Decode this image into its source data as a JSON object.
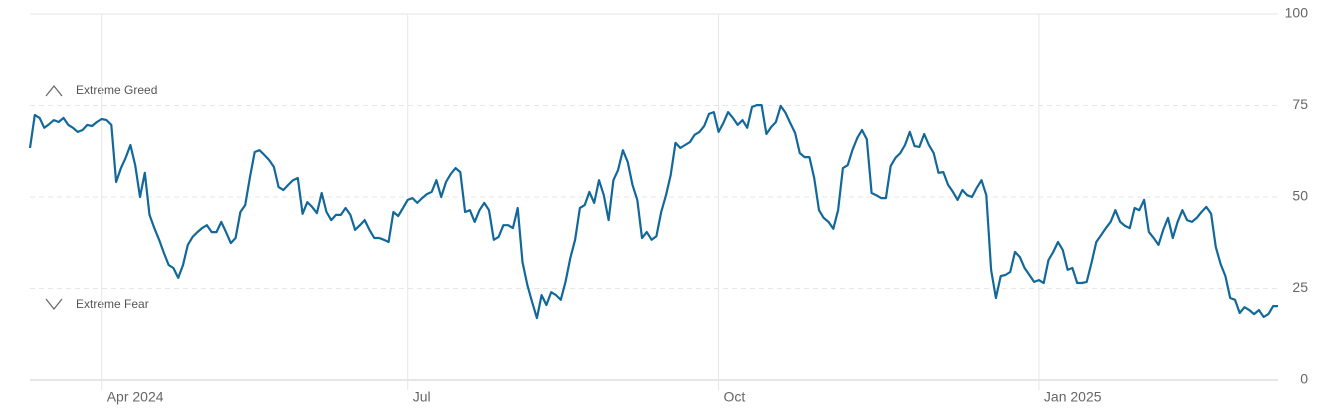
{
  "chart_data": {
    "type": "line",
    "annotations": [
      "Extreme Greed",
      "Extreme Fear"
    ],
    "xlim": [
      0,
      261
    ],
    "xticks": [
      {
        "value": 15,
        "label": "Apr 2024"
      },
      {
        "value": 79,
        "label": "Jul"
      },
      {
        "value": 144,
        "label": "Oct"
      },
      {
        "value": 211,
        "label": "Jan 2025"
      }
    ],
    "ylim": [
      0,
      100
    ],
    "yticks": [
      0,
      25,
      50,
      75,
      100
    ],
    "grid": true,
    "series": [
      {
        "color": "#12689a",
        "values": [
          63.4,
          72.4,
          71.6,
          68.9,
          69.9,
          71,
          70.5,
          71.6,
          69.7,
          68.9,
          67.8,
          68.3,
          69.7,
          69.4,
          70.5,
          71.3,
          71,
          69.7,
          54.1,
          57.9,
          60.7,
          64.2,
          58.7,
          50,
          56.6,
          45.1,
          41.5,
          38.3,
          34.7,
          31.4,
          30.6,
          27.9,
          31.4,
          36.9,
          39.1,
          40.4,
          41.5,
          42.3,
          40.4,
          40.4,
          43.2,
          40.4,
          37.4,
          38.8,
          45.9,
          47.8,
          55.5,
          62.3,
          62.8,
          61.5,
          60.1,
          58.2,
          52.7,
          51.9,
          53.3,
          54.6,
          55.2,
          45.4,
          48.6,
          47.3,
          45.6,
          51.1,
          45.9,
          43.7,
          45.1,
          45.1,
          47,
          45.1,
          41,
          42.3,
          43.7,
          41,
          38.8,
          38.8,
          38.3,
          37.7,
          45.9,
          44.8,
          47,
          49.2,
          49.7,
          48.4,
          49.7,
          50.8,
          51.4,
          54.6,
          50,
          54.1,
          56.3,
          57.9,
          56.8,
          45.9,
          46.4,
          43.2,
          46.4,
          48.4,
          46.4,
          38.3,
          39.1,
          42.3,
          42.3,
          41.5,
          47,
          32.2,
          26,
          21.3,
          16.9,
          23.2,
          20.5,
          24,
          23.2,
          21.9,
          26.8,
          33.3,
          38.3,
          47,
          47.8,
          51.4,
          48.4,
          54.6,
          50.5,
          43.7,
          54.6,
          57.4,
          62.8,
          59.6,
          53.3,
          49.2,
          38.8,
          40.4,
          38.3,
          39.3,
          45.9,
          50.5,
          56,
          64.8,
          63.4,
          64.2,
          65,
          67,
          67.8,
          69.4,
          72.7,
          73.2,
          67.8,
          70.2,
          73.2,
          71.6,
          69.7,
          71,
          68.9,
          74.6,
          75.1,
          75.1,
          67.2,
          69.1,
          70.5,
          74.9,
          73,
          70.2,
          67.5,
          62,
          60.9,
          60.9,
          55.2,
          46.4,
          44.3,
          43.2,
          41.3,
          46.4,
          57.9,
          58.7,
          62.8,
          66.1,
          68.3,
          65.8,
          51.1,
          50.5,
          49.7,
          49.7,
          58.5,
          60.7,
          62,
          64.2,
          67.8,
          63.9,
          63.7,
          67.2,
          64.2,
          62,
          56.6,
          56.8,
          53.3,
          51.4,
          49.2,
          51.9,
          50.5,
          50,
          52.5,
          54.6,
          50.5,
          30.1,
          22.4,
          28.4,
          28.7,
          29.5,
          35,
          33.6,
          30.6,
          28.7,
          26.8,
          27.3,
          26.5,
          32.8,
          35,
          37.7,
          35.5,
          30.1,
          30.6,
          26.5,
          26.5,
          26.8,
          32,
          37.7,
          39.6,
          41.5,
          43.2,
          46.4,
          43.2,
          42.1,
          41.5,
          47,
          46.4,
          49.2,
          40.4,
          38.8,
          36.9,
          41,
          44.3,
          38.8,
          43.2,
          46.4,
          43.7,
          43.2,
          44.3,
          45.9,
          47.3,
          45.4,
          36.3,
          31.7,
          28.4,
          22.4,
          21.9,
          18.3,
          19.9,
          19.1,
          18,
          19.1,
          17.2,
          18,
          20.2,
          20.2
        ]
      }
    ]
  }
}
